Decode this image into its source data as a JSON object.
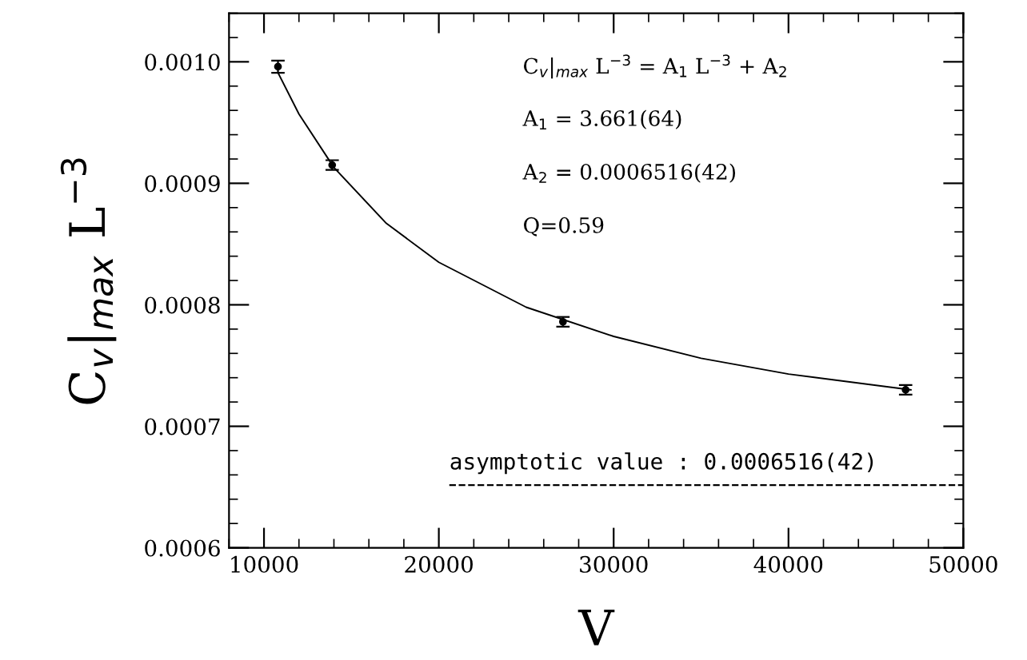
{
  "chart_data": {
    "type": "scatter",
    "xlabel": "V",
    "ylabel": "C$_{v}$|$_{max}$ L$^{−3}$",
    "series": [
      {
        "color": "#000000",
        "marker": "circle",
        "x": [
          10800,
          13900,
          27100,
          46700
        ],
        "values": [
          0.000996,
          0.000915,
          0.000786,
          0.00073
        ],
        "errors": [
          5e-06,
          4e-06,
          4e-06,
          4e-06
        ]
      },
      {
        "type": "line",
        "color": "#000000",
        "x": [
          10800,
          12000,
          14000,
          17000,
          20000,
          25000,
          30000,
          35000,
          40000,
          47000
        ],
        "values": [
          0.000991,
          0.000957,
          0.000913,
          0.000867,
          0.000835,
          0.000798,
          0.000774,
          0.000756,
          0.000743,
          0.00073
        ]
      }
    ],
    "xlim": [
      8000,
      50000
    ],
    "xticks": [
      10000,
      20000,
      30000,
      40000,
      50000
    ],
    "ylim": [
      0.0006,
      0.00104
    ],
    "yticks": [
      {
        "value": 0.0006,
        "label": "0.0006"
      },
      {
        "value": 0.0007,
        "label": "0.0007"
      },
      {
        "value": 0.0008,
        "label": "0.0008"
      },
      {
        "value": 0.0009,
        "label": "0.0009"
      },
      {
        "value": 0.001,
        "label": "0.0010"
      }
    ],
    "ref_lines": [
      {
        "axis": "y",
        "value": 0.0006516,
        "label": "asymptotic value : 0.0006516(42)",
        "color": "#000000",
        "line_style": "dashed"
      }
    ],
    "annotations": [
      "C$_{v}$|$_{max}$ L$^{−3}$ = A$_{1}$ L$^{−3}$ + A$_{2}$",
      "A$_{1}$ = 3.661(64)",
      "A$_{2}$ = 0.0006516(42)",
      "Q=0.59"
    ],
    "grid": false,
    "legend": false
  }
}
